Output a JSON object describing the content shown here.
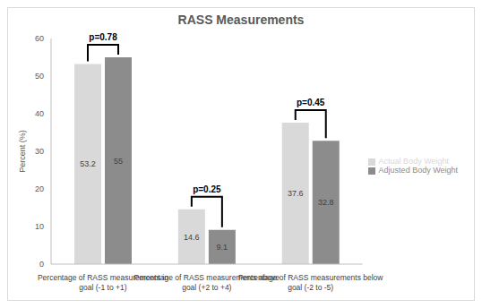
{
  "chart_data": {
    "type": "bar",
    "title": "RASS Measurements",
    "y_label": "Percent (%)",
    "categories": [
      "Percentage of RASS measurements in goal (-1 to +1)",
      "Percentage of RASS measurements above goal (+2 to +4)",
      "Percentage of RASS measurements below goal (-2 to -5)"
    ],
    "series": [
      {
        "name": "Actual Body Weight",
        "color": "#d9d9d9",
        "values": [
          53.2,
          14.6,
          37.6
        ]
      },
      {
        "name": "Adjusted Body Weight",
        "color": "#8c8c8c",
        "values": [
          55,
          9.1,
          32.8
        ]
      }
    ],
    "annotations": [
      "p=0.78",
      "p=0.25",
      "p=0.45"
    ],
    "ylim": [
      0,
      60
    ],
    "yticks": [
      0,
      10,
      20,
      30,
      40,
      50,
      60
    ],
    "grid": false,
    "legend": "right",
    "data_labels": true
  }
}
